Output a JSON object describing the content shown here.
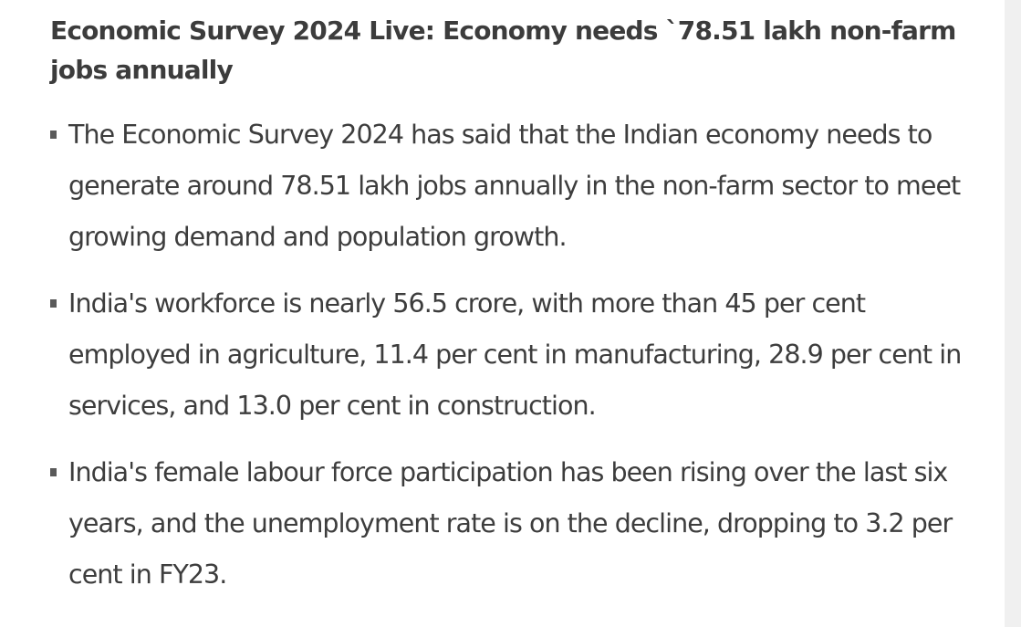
{
  "article": {
    "headline": "Economic Survey 2024 Live: Economy needs `78.51 lakh non-farm jobs annually",
    "bullets": [
      {
        "text": "The Economic Survey 2024 has said that the Indian economy needs to generate around 78.51 lakh jobs annually in the non-farm sector to meet growing demand and population growth."
      },
      {
        "text": "India's workforce is nearly 56.5 crore, with more than 45 per cent employed in agriculture, 11.4 per cent in manufacturing, 28.9 per cent in services, and 13.0 per cent in construction."
      },
      {
        "text": "India's female labour force participation has been rising over the last six years, and the unemployment rate is on the decline, dropping to 3.2 per cent in FY23."
      }
    ]
  },
  "colors": {
    "headline": "#3c3c3c",
    "body_text": "#3d3d3d",
    "bullet_marker": "#5a5a5a",
    "background": "#ffffff",
    "side_gutter": "#f0f0f0"
  },
  "icons": {
    "bullet_marker": "square-bullet-icon"
  }
}
